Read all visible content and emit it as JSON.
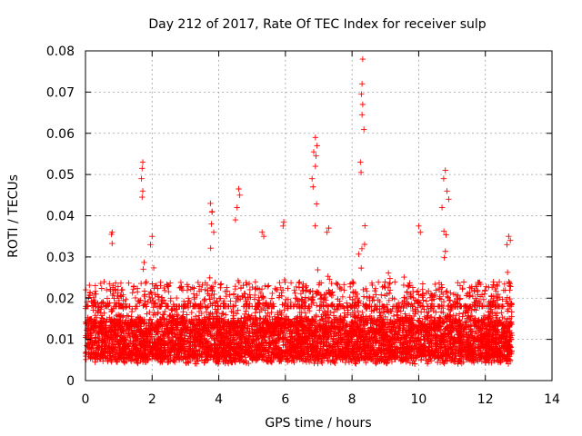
{
  "chart_data": {
    "type": "scatter",
    "title": "Day 212 of 2017, Rate Of TEC Index for receiver sulp",
    "xlabel": "GPS time / hours",
    "ylabel": "ROTI / TECUs",
    "xlim": [
      0,
      14
    ],
    "ylim": [
      0,
      0.08
    ],
    "xticks": [
      "0",
      "2",
      "4",
      "6",
      "8",
      "10",
      "12",
      "14"
    ],
    "yticks": [
      "0",
      "0.01",
      "0.02",
      "0.03",
      "0.04",
      "0.05",
      "0.06",
      "0.07",
      "0.08"
    ],
    "grid": true,
    "marker": "+",
    "color": "#ff0000",
    "series": [
      {
        "name": "ROTI",
        "x_range": [
          0,
          12.8
        ],
        "baseline_typical": [
          0.005,
          0.015
        ],
        "background_peaks": [
          [
            0.2,
            0.026
          ],
          [
            0.8,
            0.036
          ],
          [
            1.7,
            0.053
          ],
          [
            2.0,
            0.035
          ],
          [
            3.1,
            0.029
          ],
          [
            3.8,
            0.043
          ],
          [
            4.6,
            0.046
          ],
          [
            5.3,
            0.036
          ],
          [
            5.9,
            0.038
          ],
          [
            6.9,
            0.059
          ],
          [
            7.3,
            0.037
          ],
          [
            8.3,
            0.078
          ],
          [
            9.1,
            0.032
          ],
          [
            9.6,
            0.031
          ],
          [
            10.0,
            0.037
          ],
          [
            10.8,
            0.051
          ],
          [
            11.7,
            0.028
          ],
          [
            12.2,
            0.029
          ],
          [
            12.7,
            0.035
          ]
        ],
        "notable_points": [
          [
            8.32,
            0.078
          ],
          [
            8.3,
            0.072
          ],
          [
            8.28,
            0.0695
          ],
          [
            8.32,
            0.067
          ],
          [
            8.3,
            0.0645
          ],
          [
            8.25,
            0.053
          ],
          [
            8.27,
            0.0505
          ],
          [
            6.9,
            0.059
          ],
          [
            6.95,
            0.057
          ],
          [
            6.85,
            0.0555
          ],
          [
            6.92,
            0.0545
          ],
          [
            6.9,
            0.052
          ],
          [
            6.8,
            0.049
          ],
          [
            6.83,
            0.047
          ],
          [
            1.72,
            0.053
          ],
          [
            1.7,
            0.0515
          ],
          [
            1.68,
            0.049
          ],
          [
            1.72,
            0.046
          ],
          [
            1.7,
            0.0445
          ],
          [
            10.8,
            0.051
          ],
          [
            10.75,
            0.049
          ],
          [
            10.85,
            0.046
          ],
          [
            10.9,
            0.044
          ],
          [
            10.7,
            0.042
          ],
          [
            4.6,
            0.0465
          ],
          [
            4.63,
            0.045
          ],
          [
            4.55,
            0.042
          ],
          [
            4.5,
            0.039
          ],
          [
            3.75,
            0.043
          ],
          [
            3.8,
            0.041
          ],
          [
            3.78,
            0.038
          ],
          [
            3.85,
            0.036
          ],
          [
            5.95,
            0.0385
          ],
          [
            5.93,
            0.0375
          ],
          [
            10.0,
            0.0375
          ],
          [
            10.05,
            0.036
          ],
          [
            0.8,
            0.036
          ],
          [
            0.78,
            0.0355
          ],
          [
            2.0,
            0.035
          ],
          [
            1.95,
            0.033
          ],
          [
            12.7,
            0.035
          ],
          [
            12.75,
            0.034
          ],
          [
            12.65,
            0.033
          ],
          [
            7.3,
            0.037
          ],
          [
            7.25,
            0.036
          ],
          [
            5.3,
            0.036
          ],
          [
            5.35,
            0.035
          ]
        ]
      }
    ]
  }
}
